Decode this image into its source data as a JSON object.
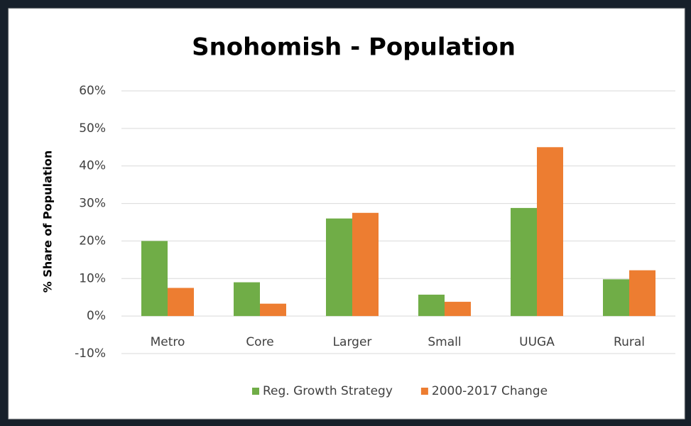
{
  "chart_data": {
    "type": "bar",
    "title": "Snohomish - Population",
    "y_label": "% Share of Population",
    "categories": [
      "Metro",
      "Core",
      "Larger",
      "Small",
      "UUGA",
      "Rural"
    ],
    "series": [
      {
        "name": "Reg. Growth Strategy",
        "color": "#70ad47",
        "values": [
          20,
          9,
          26,
          5.7,
          28.8,
          9.8
        ]
      },
      {
        "name": "2000-2017 Change",
        "color": "#ed7d31",
        "values": [
          7.5,
          3.3,
          27.5,
          3.8,
          45,
          12.2
        ]
      }
    ],
    "ylim": [
      -10,
      60
    ],
    "yticks": [
      {
        "value": -10,
        "label": "-10%"
      },
      {
        "value": 0,
        "label": "0%"
      },
      {
        "value": 10,
        "label": "10%"
      },
      {
        "value": 20,
        "label": "20%"
      },
      {
        "value": 30,
        "label": "30%"
      },
      {
        "value": 40,
        "label": "40%"
      },
      {
        "value": 50,
        "label": "50%"
      },
      {
        "value": 60,
        "label": "60%"
      }
    ],
    "grid": true,
    "legend": "bottom"
  }
}
